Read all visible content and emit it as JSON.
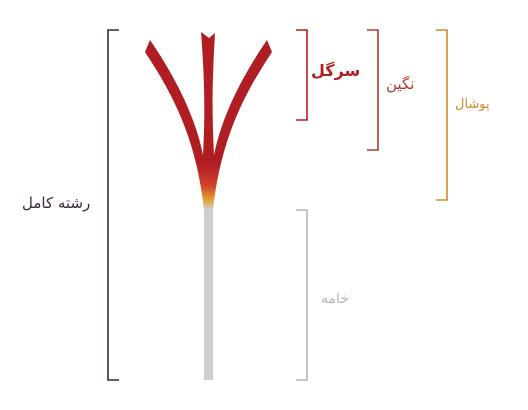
{
  "labels": {
    "full_strand": "رشته کامل",
    "stigma": "سرگل",
    "negin": "نگین",
    "pushal": "پوشال",
    "style": "خامه"
  },
  "colors": {
    "full_strand": "#3a2a3a",
    "stigma": "#b01e24",
    "negin": "#b23a2c",
    "pushal": "#d08a2a",
    "style": "#b5b5b5",
    "stem": "#cfcfcf",
    "transition": "#e0a030"
  }
}
